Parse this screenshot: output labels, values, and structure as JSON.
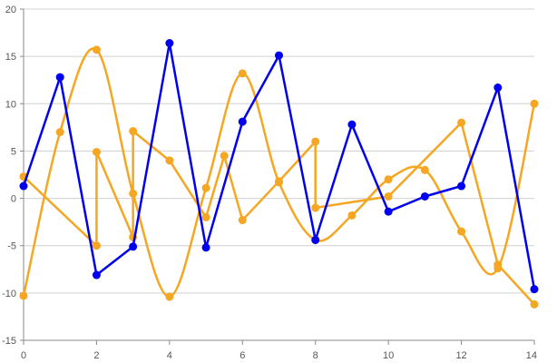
{
  "chart_data": {
    "type": "line",
    "title": "",
    "xlabel": "",
    "ylabel": "",
    "xlim": [
      0,
      14
    ],
    "ylim": [
      -15,
      20
    ],
    "x_ticks": [
      "0",
      "2",
      "4",
      "6",
      "8",
      "10",
      "12",
      "14"
    ],
    "y_ticks": [
      "-15",
      "-10",
      "-5",
      "0",
      "5",
      "10",
      "15",
      "20"
    ],
    "grid": "horizontal",
    "legend": "none",
    "series": [
      {
        "color": "#0000ee",
        "style": "straight",
        "points": [
          [
            0,
            1.3
          ],
          [
            1,
            12.8
          ],
          [
            2,
            -8.1
          ],
          [
            3,
            -5.1
          ],
          [
            4,
            16.4
          ],
          [
            5,
            -5.2
          ],
          [
            6,
            8.1
          ],
          [
            7,
            15.1
          ],
          [
            8,
            -4.4
          ],
          [
            9,
            7.8
          ],
          [
            10,
            -1.4
          ],
          [
            11,
            0.2
          ],
          [
            12,
            1.3
          ],
          [
            13,
            11.7
          ],
          [
            14,
            -9.6
          ]
        ]
      },
      {
        "color": "#f5a623",
        "style": "smooth",
        "points": [
          [
            0,
            -10.3
          ],
          [
            1,
            7.0
          ],
          [
            2,
            15.7
          ],
          [
            3,
            0.5
          ],
          [
            4,
            -10.4
          ],
          [
            5,
            1.1
          ],
          [
            6,
            13.2
          ],
          [
            7,
            1.7
          ],
          [
            8,
            -4.4
          ],
          [
            9,
            -1.8
          ],
          [
            10,
            2.0
          ],
          [
            11,
            3.0
          ],
          [
            12,
            -3.5
          ],
          [
            13,
            -7.4
          ],
          [
            14,
            10.0
          ]
        ]
      },
      {
        "color": "#f5a623",
        "style": "straight",
        "points": [
          [
            0,
            2.3
          ],
          [
            2,
            -5.0
          ],
          [
            2,
            4.9
          ],
          [
            3,
            -4.1
          ],
          [
            3,
            7.1
          ],
          [
            4,
            4.0
          ],
          [
            5,
            -2.0
          ],
          [
            5.5,
            4.5
          ],
          [
            6,
            -2.3
          ],
          [
            7,
            1.8
          ],
          [
            8,
            6.0
          ],
          [
            8,
            -1.0
          ],
          [
            10,
            0.2
          ],
          [
            12,
            8.0
          ],
          [
            13,
            -7.0
          ],
          [
            14,
            -11.2
          ]
        ]
      }
    ]
  }
}
